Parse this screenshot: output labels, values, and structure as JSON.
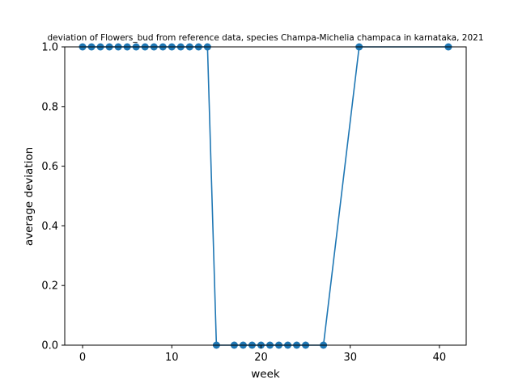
{
  "chart_data": {
    "type": "line",
    "title": "deviation of Flowers_bud from reference data, species Champa-Michelia champaca in karnataka, 2021",
    "xlabel": "week",
    "ylabel": "average deviation",
    "xlim": [
      -2,
      43
    ],
    "ylim": [
      0.0,
      1.0
    ],
    "x_ticks": [
      0,
      10,
      20,
      30,
      40
    ],
    "y_ticks": [
      0.0,
      0.2,
      0.4,
      0.6,
      0.8,
      1.0
    ],
    "x_tick_labels": [
      "0",
      "10",
      "20",
      "30",
      "40"
    ],
    "y_tick_labels": [
      "0.0",
      "0.2",
      "0.4",
      "0.6",
      "0.8",
      "1.0"
    ],
    "grid": false,
    "series": [
      {
        "color": "#1f77b4",
        "marker": "circle",
        "x": [
          0,
          1,
          2,
          3,
          4,
          5,
          6,
          7,
          8,
          9,
          10,
          11,
          12,
          13,
          14,
          15,
          17,
          18,
          19,
          20,
          21,
          22,
          23,
          24,
          25,
          27,
          31,
          41
        ],
        "y": [
          1,
          1,
          1,
          1,
          1,
          1,
          1,
          1,
          1,
          1,
          1,
          1,
          1,
          1,
          1,
          0,
          0,
          0,
          0,
          0,
          0,
          0,
          0,
          0,
          0,
          0,
          1,
          1
        ]
      }
    ],
    "colors": {
      "line": "#1f77b4",
      "axes": "#000000",
      "background": "#ffffff"
    }
  }
}
